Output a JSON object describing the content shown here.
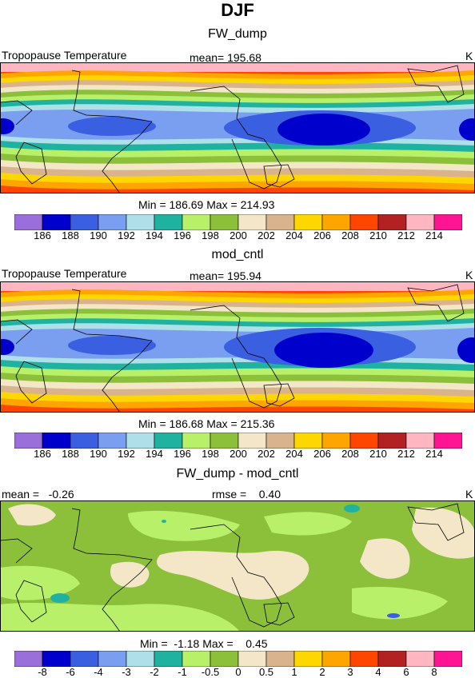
{
  "figure_title": "DJF",
  "panels": [
    {
      "title": "FW_dump",
      "left_label": "Tropopause Temperature",
      "stat_label": "mean= 195.68",
      "unit": "K",
      "minmax": "Min = 186.69 Max = 214.93",
      "colorbar_ticks": [
        "186",
        "188",
        "190",
        "192",
        "194",
        "196",
        "198",
        "200",
        "202",
        "204",
        "206",
        "208",
        "210",
        "212",
        "214"
      ]
    },
    {
      "title": "mod_cntl",
      "left_label": "Tropopause Temperature",
      "stat_label": "mean= 195.94",
      "unit": "K",
      "minmax": "Min = 186.68 Max = 215.36",
      "colorbar_ticks": [
        "186",
        "188",
        "190",
        "192",
        "194",
        "196",
        "198",
        "200",
        "202",
        "204",
        "206",
        "208",
        "210",
        "212",
        "214"
      ]
    },
    {
      "title": "FW_dump - mod_cntl",
      "left_label": "mean =   -0.26",
      "stat_label": "rmse =    0.40",
      "unit": "K",
      "minmax": "Min =  -1.18 Max =    0.45",
      "colorbar_ticks": [
        "-8",
        "-6",
        "-4",
        "-3",
        "-2",
        "-1",
        "-0.5",
        "0",
        "0.5",
        "1",
        "2",
        "3",
        "4",
        "6",
        "8"
      ]
    }
  ],
  "colors": {
    "abs_scale": [
      "#9a6fdc",
      "#0000cc",
      "#3a5fe0",
      "#7a9ef0",
      "#aee0ea",
      "#20b2a0",
      "#b8f06a",
      "#8cbf3a",
      "#f3e7c8",
      "#d9b38c",
      "#ffd700",
      "#ffa500",
      "#ff4500",
      "#b22222",
      "#ffb6c1",
      "#ff1493"
    ],
    "diff_scale": [
      "#9a6fdc",
      "#0000cc",
      "#3a5fe0",
      "#7a9ef0",
      "#aee0ea",
      "#20b2a0",
      "#b8f06a",
      "#8cbf3a",
      "#f3e7c8",
      "#d9b38c",
      "#ffd700",
      "#ffa500",
      "#ff4500",
      "#b22222",
      "#ffb6c1",
      "#ff1493"
    ],
    "coast": "#000000"
  }
}
